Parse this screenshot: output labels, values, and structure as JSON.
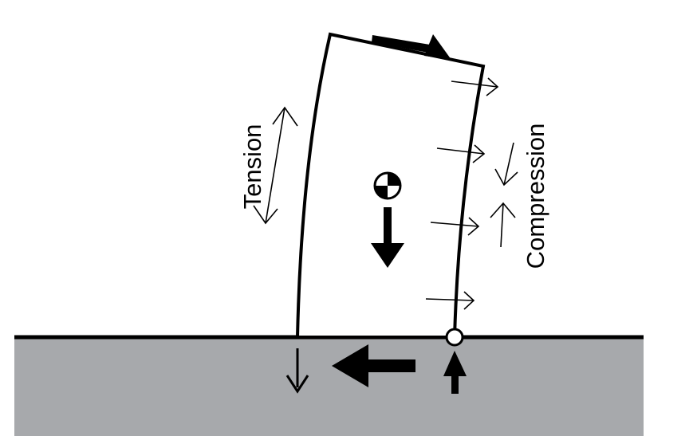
{
  "labels": {
    "tension": "Tension",
    "compression": "Compression"
  },
  "colors": {
    "ink": "#000000",
    "ground": "#a7a9ac",
    "background": "#ffffff"
  },
  "icons": {
    "center_of_mass": "center-of-mass-icon",
    "pivot": "pivot-point-icon"
  }
}
